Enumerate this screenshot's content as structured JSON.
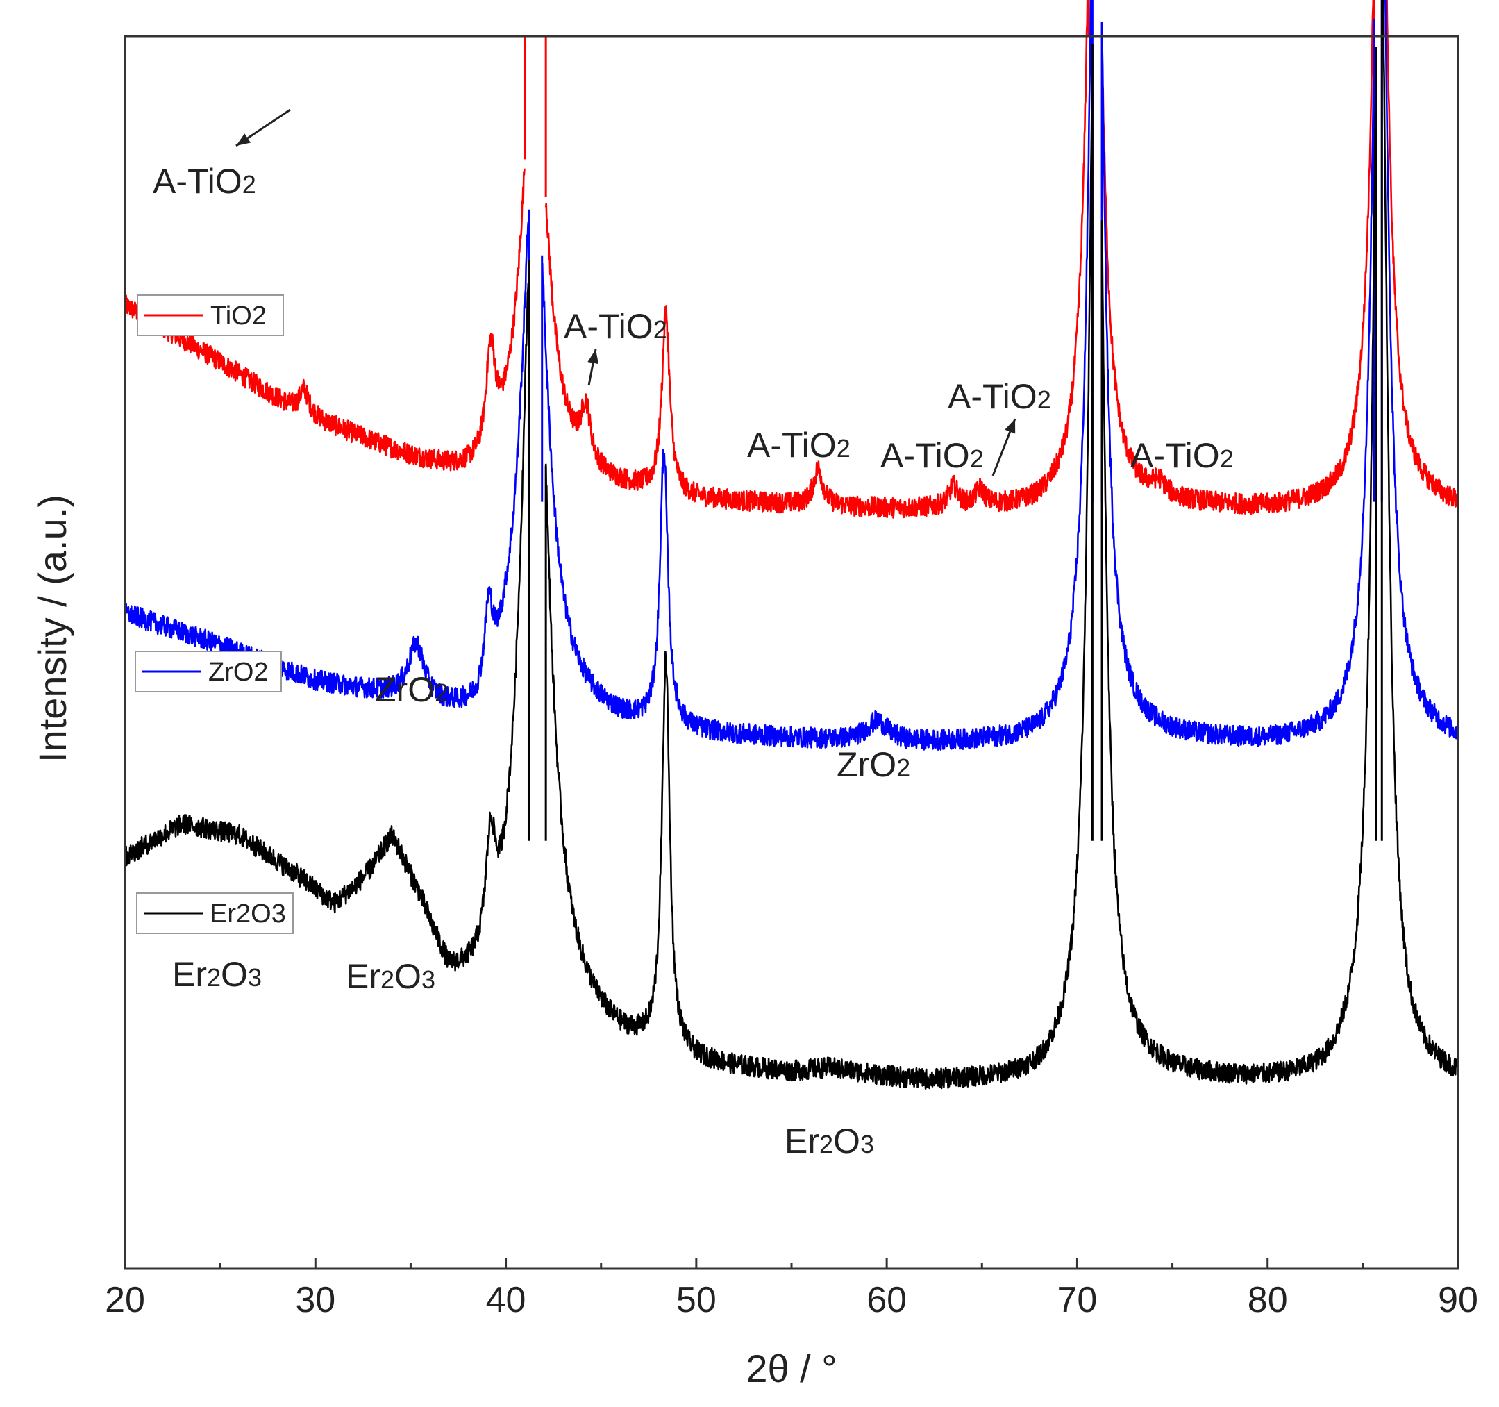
{
  "chart_data": {
    "type": "line",
    "xlabel": "2θ / °",
    "ylabel": "Intensity / (a.u.)",
    "xlim": [
      20,
      90
    ],
    "y_units": "arbitrary, stacked offsets",
    "x_ticks": [
      "20",
      "30",
      "40",
      "50",
      "60",
      "70",
      "80",
      "90"
    ],
    "grid": false,
    "legend_placement": "left, beside each trace",
    "series": [
      {
        "name": "TiO2",
        "color": "#ff0000",
        "baseline": [
          [
            20,
            50
          ],
          [
            25,
            36
          ],
          [
            29,
            24
          ],
          [
            30,
            22
          ],
          [
            35,
            12
          ],
          [
            38.8,
            5
          ],
          [
            40,
            6
          ],
          [
            44,
            5
          ],
          [
            46,
            4
          ],
          [
            50,
            2
          ],
          [
            55,
            1
          ],
          [
            60,
            0
          ],
          [
            68,
            0
          ],
          [
            69.5,
            2
          ],
          [
            70,
            4
          ],
          [
            72.5,
            2
          ],
          [
            75,
            1
          ],
          [
            80,
            0
          ],
          [
            84,
            1
          ],
          [
            85,
            4
          ],
          [
            87,
            3
          ],
          [
            90,
            0
          ]
        ],
        "peaks": [
          [
            29.4,
            6,
            0.3
          ],
          [
            39.2,
            25,
            0.3
          ],
          [
            41.5,
            110,
            0.8
          ],
          [
            44.2,
            13,
            0.3
          ],
          [
            48.4,
            44,
            0.25
          ],
          [
            56.4,
            9,
            0.3
          ],
          [
            63.5,
            5,
            0.3
          ],
          [
            64.9,
            4,
            0.3
          ],
          [
            70.9,
            200,
            0.45
          ],
          [
            74.3,
            3,
            0.4
          ],
          [
            85.9,
            200,
            0.45
          ]
        ],
        "peak_caps": [
          [
            41.0,
            42.1
          ],
          [
            70.6,
            71.3
          ],
          [
            85.6,
            86.2
          ]
        ],
        "offset": 0.385
      },
      {
        "name": "ZrO2",
        "color": "#0000ff",
        "baseline": [
          [
            20,
            32
          ],
          [
            25,
            24
          ],
          [
            30,
            15
          ],
          [
            35,
            10
          ],
          [
            38.5,
            3
          ],
          [
            40,
            8
          ],
          [
            44,
            6
          ],
          [
            46,
            4
          ],
          [
            50,
            2
          ],
          [
            55,
            1
          ],
          [
            60,
            0
          ],
          [
            68,
            0
          ],
          [
            69.5,
            2
          ],
          [
            70,
            4
          ],
          [
            72.5,
            2
          ],
          [
            75,
            1
          ],
          [
            80,
            0
          ],
          [
            84,
            1
          ],
          [
            85,
            4
          ],
          [
            87,
            3
          ],
          [
            90,
            0
          ]
        ],
        "peaks": [
          [
            35.3,
            13,
            0.5
          ],
          [
            39.1,
            18,
            0.25
          ],
          [
            41.5,
            140,
            0.8
          ],
          [
            48.3,
            67,
            0.25
          ],
          [
            59.5,
            5,
            0.7
          ],
          [
            71.0,
            250,
            0.45
          ],
          [
            85.9,
            250,
            0.45
          ]
        ],
        "peak_caps": [
          [
            41.2,
            41.9
          ],
          [
            70.8,
            71.3
          ],
          [
            85.6,
            86.0
          ]
        ],
        "offset": 0.575
      },
      {
        "name": "Er2O3",
        "color": "#000000",
        "baseline": [
          [
            20,
            55
          ],
          [
            23,
            63
          ],
          [
            26,
            60
          ],
          [
            29,
            50
          ],
          [
            31,
            42
          ],
          [
            33,
            48
          ],
          [
            34,
            52
          ],
          [
            35.5,
            40
          ],
          [
            37,
            22
          ],
          [
            38.5,
            18
          ],
          [
            40,
            16
          ],
          [
            42,
            16
          ],
          [
            44,
            12
          ],
          [
            46,
            8
          ],
          [
            48,
            6
          ],
          [
            50,
            4
          ],
          [
            52,
            3
          ],
          [
            55,
            2
          ],
          [
            57,
            3
          ],
          [
            60,
            1
          ],
          [
            62,
            0
          ],
          [
            68,
            0
          ],
          [
            70,
            3
          ],
          [
            73,
            2
          ],
          [
            75,
            1
          ],
          [
            80,
            0
          ],
          [
            83,
            0
          ],
          [
            85,
            3
          ],
          [
            87,
            1
          ],
          [
            90,
            0
          ]
        ],
        "peaks": [
          [
            34.1,
            6,
            1.2
          ],
          [
            39.2,
            25,
            0.3
          ],
          [
            41.5,
            210,
            0.8
          ],
          [
            48.4,
            95,
            0.25
          ],
          [
            71.0,
            300,
            0.45
          ],
          [
            85.9,
            300,
            0.45
          ]
        ],
        "peak_caps": [
          [
            41.2,
            42.1
          ],
          [
            70.8,
            71.3
          ],
          [
            85.7,
            86.0
          ]
        ],
        "offset": 0.85
      }
    ],
    "legend_entries": [
      "TiO2",
      "ZrO2",
      "Er2O3"
    ],
    "annotations": [
      {
        "text": "A-TiO",
        "sub": "2",
        "x_data": 29.4,
        "series": "TiO2"
      },
      {
        "text": "A-TiO",
        "sub": "2",
        "x_data": 44.2,
        "series": "TiO2"
      },
      {
        "text": "A-TiO",
        "sub": "2",
        "x_data": 56.4,
        "series": "TiO2"
      },
      {
        "text": "A-TiO",
        "sub": "2",
        "x_data": 63.5,
        "series": "TiO2"
      },
      {
        "text": "A-TiO",
        "sub": "2",
        "x_data": 64.9,
        "series": "TiO2"
      },
      {
        "text": "A-TiO",
        "sub": "2",
        "x_data": 74.3,
        "series": "TiO2"
      },
      {
        "text": "ZrO",
        "sub": "2",
        "x_data": 35.3,
        "series": "ZrO2"
      },
      {
        "text": "ZrO",
        "sub": "2",
        "x_data": 59.5,
        "series": "ZrO2"
      },
      {
        "text": "Er",
        "sub": "2",
        "text2": "O",
        "sub2": "3",
        "x_data": 25,
        "series": "Er2O3"
      },
      {
        "text": "Er",
        "sub": "2",
        "text2": "O",
        "sub2": "3",
        "x_data": 34.1,
        "series": "Er2O3"
      },
      {
        "text": "Er",
        "sub": "2",
        "text2": "O",
        "sub2": "3",
        "x_data": 57,
        "series": "Er2O3"
      }
    ]
  }
}
